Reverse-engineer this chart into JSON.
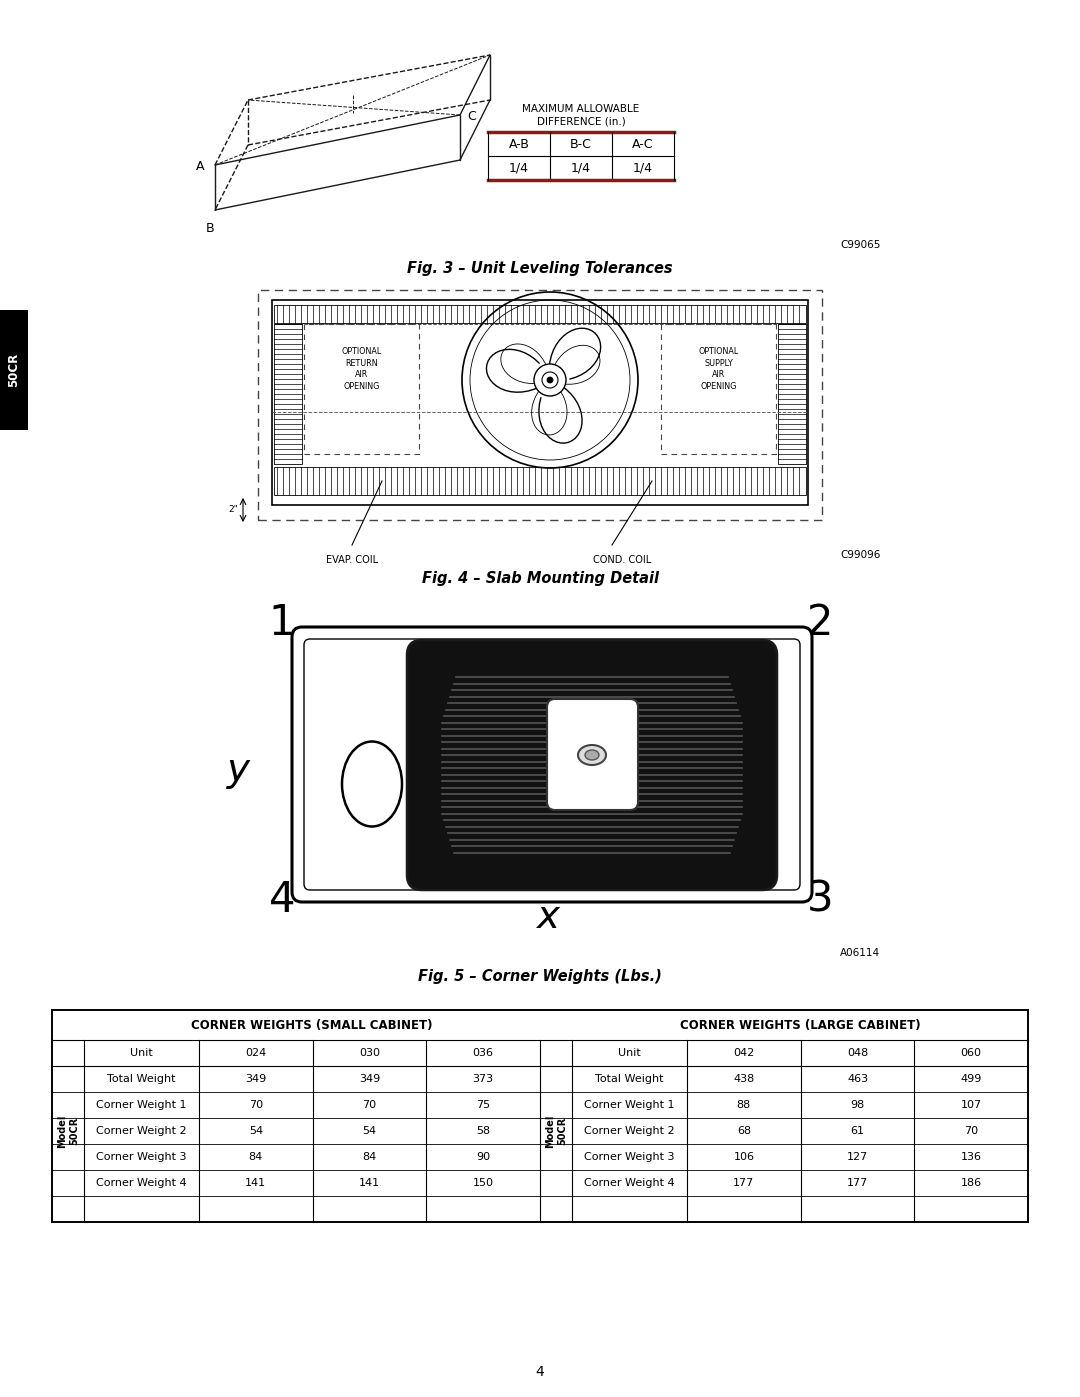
{
  "page_bg": "#ffffff",
  "page_width": 10.8,
  "page_height": 13.97,
  "dpi": 100,
  "fig3_caption": "Fig. 3 – Unit Leveling Tolerances",
  "fig3_code": "C99065",
  "fig3_cols": [
    "A-B",
    "B-C",
    "A-C"
  ],
  "fig3_vals": [
    "1/4",
    "1/4",
    "1/4"
  ],
  "fig4_caption": "Fig. 4 – Slab Mounting Detail",
  "fig4_code": "C99096",
  "fig5_caption": "Fig. 5 – Corner Weights (Lbs.)",
  "fig5_code": "A06114",
  "table_small_header": "CORNER WEIGHTS (SMALL CABINET)",
  "table_large_header": "CORNER WEIGHTS (LARGE CABINET)",
  "table_col_small": [
    "Unit",
    "024",
    "030",
    "036"
  ],
  "table_col_large": [
    "Unit",
    "042",
    "048",
    "060"
  ],
  "table_rows_small": [
    [
      "Total Weight",
      "349",
      "349",
      "373"
    ],
    [
      "Corner Weight 1",
      "70",
      "70",
      "75"
    ],
    [
      "Corner Weight 2",
      "54",
      "54",
      "58"
    ],
    [
      "Corner Weight 3",
      "84",
      "84",
      "90"
    ],
    [
      "Corner Weight 4",
      "141",
      "141",
      "150"
    ]
  ],
  "table_rows_large": [
    [
      "Total Weight",
      "438",
      "463",
      "499"
    ],
    [
      "Corner Weight 1",
      "88",
      "98",
      "107"
    ],
    [
      "Corner Weight 2",
      "68",
      "61",
      "70"
    ],
    [
      "Corner Weight 3",
      "106",
      "127",
      "136"
    ],
    [
      "Corner Weight 4",
      "177",
      "177",
      "186"
    ]
  ],
  "side_label": "50CR",
  "page_num": "4",
  "header_bar_color": "#8B1A1A"
}
